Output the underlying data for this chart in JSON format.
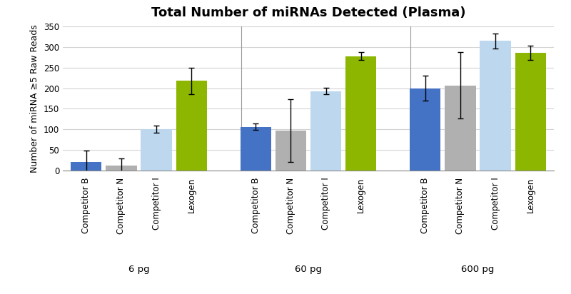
{
  "title": "Total Number of miRNAs Detected (Plasma)",
  "ylabel": "Number of miRNA ≥5 Raw Reads",
  "groups": [
    "6 pg",
    "60 pg",
    "600 pg"
  ],
  "bar_labels": [
    "Competitor B",
    "Competitor N",
    "Competitor I",
    "Lexogen"
  ],
  "bar_colors": [
    "#4472C4",
    "#B0B0B0",
    "#BDD7EE",
    "#8DB600"
  ],
  "values": [
    [
      20,
      12,
      100,
      218
    ],
    [
      106,
      97,
      193,
      278
    ],
    [
      200,
      207,
      315,
      286
    ]
  ],
  "errors": [
    [
      28,
      18,
      9,
      32
    ],
    [
      8,
      77,
      8,
      10
    ],
    [
      30,
      80,
      18,
      18
    ]
  ],
  "ylim": [
    0,
    350
  ],
  "yticks": [
    0,
    50,
    100,
    150,
    200,
    250,
    300,
    350
  ],
  "background_color": "#FFFFFF",
  "grid_color": "#D3D3D3",
  "title_fontsize": 13,
  "label_fontsize": 9,
  "tick_fontsize": 8.5,
  "group_label_fontsize": 9.5
}
